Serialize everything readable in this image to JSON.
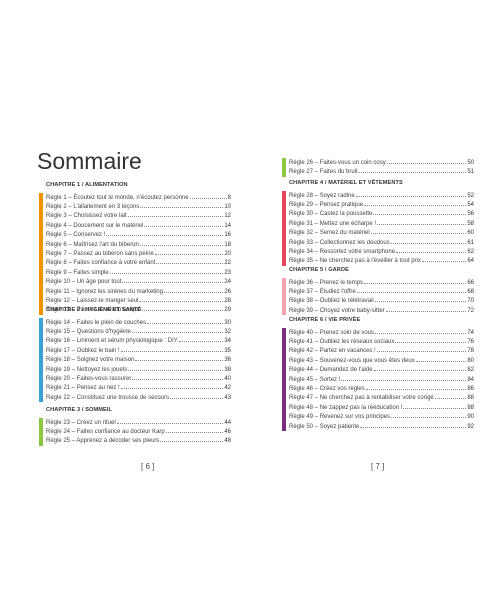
{
  "left_page": {
    "title": "Sommaire",
    "page_number": "[ 6 ]",
    "sections": [
      {
        "heading": "CHAPITRE 1 / ALIMENTATION",
        "color": "#f39200",
        "entries": [
          {
            "label": "Règle 1 – Écoutez tout le monde, n'écoutez personne",
            "page": 8
          },
          {
            "label": "Règle 2 – L'allaitement en 3 leçons",
            "page": 10
          },
          {
            "label": "Règle 3 – Choisissez votre lait",
            "page": 12
          },
          {
            "label": "Règle 4 – Doucement sur le matériel",
            "page": 14
          },
          {
            "label": "Règle 5 – Conservez !",
            "page": 16
          },
          {
            "label": "Règle 6 – Maîtrisez l'art du biberon",
            "page": 18
          },
          {
            "label": "Règle 7 – Passez au biberon sans peine",
            "page": 20
          },
          {
            "label": "Règle 8 – Faites confiance à votre enfant",
            "page": 22
          },
          {
            "label": "Règle 9 – Faites simple",
            "page": 23
          },
          {
            "label": "Règle 10 – Un âge pour tout",
            "page": 24
          },
          {
            "label": "Règle 11 – Ignorez les sirènes du marketing",
            "page": 26
          },
          {
            "label": "Règle 12 – Laissez-le manger seul",
            "page": 28
          },
          {
            "label": "Règle 13 – Passez au menu unique",
            "page": 29
          }
        ]
      },
      {
        "heading": "CHAPITRE 2 / HYGIÈNE ET SANTÉ",
        "color": "#3c9fd8",
        "entries": [
          {
            "label": "Règle 14 – Faites le plein de couches",
            "page": 30
          },
          {
            "label": "Règle 15 – Questions d'hygiène",
            "page": 32
          },
          {
            "label": "Règle 16 – Liniment et sérum physiologique : DIY",
            "page": 34
          },
          {
            "label": "Règle 17 – Oubliez le bain !",
            "page": 35
          },
          {
            "label": "Règle 18 – Soignez votre maison",
            "page": 36
          },
          {
            "label": "Règle 19 – Nettoyez les jouets",
            "page": 38
          },
          {
            "label": "Règle 20 – Faites-vous rassurer",
            "page": 40
          },
          {
            "label": "Règle 21 – Pensez au nez !",
            "page": 42
          },
          {
            "label": "Règle 22 – Constituez une trousse de secours",
            "page": 43
          }
        ]
      },
      {
        "heading": "CHAPITRE 3 / SOMMEIL",
        "color": "#8dc63f",
        "entries": [
          {
            "label": "Règle 23 – Créez un rituel",
            "page": 44
          },
          {
            "label": "Règle 24 – Faites confiance au docteur Karp",
            "page": 46
          },
          {
            "label": "Règle 25 – Apprenez à décoder ses pleurs",
            "page": 48
          }
        ]
      }
    ]
  },
  "right_page": {
    "page_number": "[ 7 ]",
    "sections": [
      {
        "color": "#8dc63f",
        "entries": [
          {
            "label": "Règle 26 – Faites-vous un coin cosy",
            "page": 50
          },
          {
            "label": "Règle 27 – Faites du bruit",
            "page": 51
          }
        ]
      },
      {
        "heading": "CHAPITRE 4 / MATÉRIEL ET VÊTEMENTS",
        "color": "#e5465a",
        "entries": [
          {
            "label": "Règle 28 – Soyez radine",
            "page": 52
          },
          {
            "label": "Règle 29 – Pensez pratique",
            "page": 54
          },
          {
            "label": "Règle 30 – Castez la poussette",
            "page": 56
          },
          {
            "label": "Règle 31 – Mettez une écharpe !",
            "page": 58
          },
          {
            "label": "Règle 32 – Semez du matériel",
            "page": 60
          },
          {
            "label": "Règle 33 – Collectionnez les doudous",
            "page": 61
          },
          {
            "label": "Règle 34 – Ressortez votre smartphone",
            "page": 62
          },
          {
            "label": "Règle 35 – Ne cherchez pas à l'éveiller à tout prix",
            "page": 64
          }
        ]
      },
      {
        "heading": "CHAPITRE 5 / GARDE",
        "color": "#f2a3ad",
        "entries": [
          {
            "label": "Règle 36 – Prenez le temps",
            "page": 66
          },
          {
            "label": "Règle 37 – Étudiez l'offre",
            "page": 68
          },
          {
            "label": "Règle 38 – Oubliez le télétravail",
            "page": 70
          },
          {
            "label": "Règle 39 – Choyez votre baby-sitter",
            "page": 72
          }
        ]
      },
      {
        "heading": "CHAPITRE 6 / VIE PRIVÉE",
        "color": "#7a2b7e",
        "entries": [
          {
            "label": "Règle 40 – Prenez soin de vous",
            "page": 74
          },
          {
            "label": "Règle 41 – Oubliez les réseaux sociaux",
            "page": 76
          },
          {
            "label": "Règle 42 – Partez en vacances !",
            "page": 78
          },
          {
            "label": "Règle 43 – Souvenez-vous que vous êtes deux",
            "page": 80
          },
          {
            "label": "Règle 44 – Demandez de l'aide",
            "page": 82
          },
          {
            "label": "Règle 45 – Sortez !",
            "page": 84
          },
          {
            "label": "Règle 46 – Créez vos règles",
            "page": 86
          },
          {
            "label": "Règle 47 – Ne cherchez pas à rentabiliser votre congé",
            "page": 88
          },
          {
            "label": "Règle 48 – Ne zappez pas la rééducation !",
            "page": 88
          },
          {
            "label": "Règle 49 – Revenez sur vos principes",
            "page": 90
          },
          {
            "label": "Règle 50 – Soyez patiente",
            "page": 92
          }
        ]
      }
    ]
  }
}
